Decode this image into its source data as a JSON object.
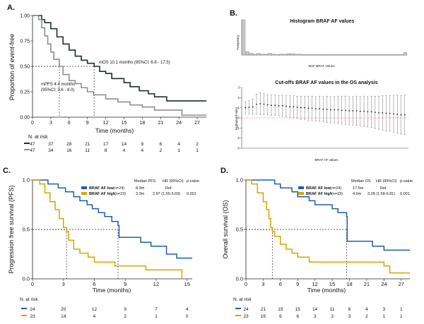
{
  "panels": {
    "A": {
      "letter": "A.",
      "ylabel": "Proportion of event-free",
      "xlabel": "Time (months)",
      "mos": "mOS 10.1 months (95%CI; 6.8 - 17.5)",
      "mpfs_1": "mPFS 4.4 months",
      "mpfs_2": "(95%CI; 3.6 - 8.0)",
      "risk_title": "N. at risk"
    },
    "B": {
      "letter": "B.",
      "hist_title": "Histogram BRAF AF values",
      "hist_ylabel": "Frequency",
      "hist_xlabel": "MAF BRAF values",
      "cut_title": "Cut-offs BRAF AF values in the OS analysis",
      "cut_ylabel": "log(hazard ratio)",
      "cut_xlabel": "BRAF AF values"
    },
    "C": {
      "letter": "C.",
      "ylabel": "Progression free survival (PFS)",
      "xlabel": "Time (months)",
      "h_median": "Median PFS",
      "h_hr": "HR (95%CI)",
      "h_p": "p-value",
      "low_label": "BRAF AF low",
      "low_n": "(n=24)",
      "low_median": "8.3m",
      "low_hr": "Ref.",
      "high_label": "BRAF AF high",
      "high_n": "(n=23)",
      "high_median": "3.3m",
      "high_hr": "2.97 (1.55-5.69)",
      "p": "0.001",
      "risk_title": "N. at risk"
    },
    "D": {
      "letter": "D.",
      "ylabel": "Overall survival (OS)",
      "xlabel": "Time (months)",
      "h_median": "Median OS",
      "h_hr": "HR (95%CI)",
      "h_p": "p-value",
      "low_label": "BRAF AF low",
      "low_n": "(n=24)",
      "low_median": "17.5m",
      "low_hr": "Ref.",
      "high_label": "BRAF AF high",
      "high_n": "(n=23)",
      "high_median": "4.6m",
      "high_hr": "3.28 (1.58-6.81)",
      "p": "0.001",
      "risk_title": "N. at risk"
    }
  },
  "chart_data": [
    {
      "id": "A",
      "type": "line",
      "title": "",
      "xlabel": "Time (months)",
      "ylabel": "Proportion of event-free",
      "xlim": [
        0,
        28.5
      ],
      "ylim": [
        0,
        1
      ],
      "xticks": [
        "0",
        "3",
        "6",
        "9",
        "12",
        "15",
        "18",
        "21",
        "24",
        "27"
      ],
      "yticks": [
        "0.00",
        "0.25",
        "0.50",
        "0.75",
        "1.00"
      ],
      "series": [
        {
          "name": "OS",
          "color": "#1f2f2a",
          "points": [
            [
              0,
              1
            ],
            [
              1,
              1
            ],
            [
              1.5,
              0.96
            ],
            [
              2,
              0.93
            ],
            [
              3,
              0.87
            ],
            [
              4,
              0.79
            ],
            [
              5,
              0.72
            ],
            [
              6,
              0.66
            ],
            [
              7,
              0.6
            ],
            [
              8,
              0.56
            ],
            [
              9,
              0.53
            ],
            [
              10.1,
              0.5
            ],
            [
              11,
              0.45
            ],
            [
              12,
              0.43
            ],
            [
              13,
              0.38
            ],
            [
              15,
              0.34
            ],
            [
              16,
              0.3
            ],
            [
              17.5,
              0.26
            ],
            [
              19,
              0.23
            ],
            [
              20,
              0.2
            ],
            [
              22,
              0.16
            ],
            [
              28.5,
              0.16
            ]
          ],
          "risk": [
            "47",
            "37",
            "28",
            "21",
            "17",
            "14",
            "9",
            "6",
            "4",
            "2"
          ]
        },
        {
          "name": "PFS",
          "color": "#8f8f8f",
          "points": [
            [
              0,
              1
            ],
            [
              1,
              0.96
            ],
            [
              1.5,
              0.88
            ],
            [
              2,
              0.8
            ],
            [
              2.5,
              0.72
            ],
            [
              3,
              0.64
            ],
            [
              3.5,
              0.57
            ],
            [
              4.4,
              0.5
            ],
            [
              5,
              0.42
            ],
            [
              6,
              0.36
            ],
            [
              7,
              0.33
            ],
            [
              8,
              0.29
            ],
            [
              9,
              0.25
            ],
            [
              10,
              0.22
            ],
            [
              12,
              0.18
            ],
            [
              14,
              0.15
            ],
            [
              16,
              0.12
            ],
            [
              18,
              0.1
            ],
            [
              20,
              0.07
            ],
            [
              24,
              0.07
            ],
            [
              24.5,
              0.02
            ],
            [
              28.5,
              0.02
            ]
          ],
          "risk": [
            "47",
            "34",
            "16",
            "11",
            "8",
            "4",
            "4",
            "2",
            "1",
            "1"
          ]
        }
      ],
      "medians": [
        {
          "x": 4.4,
          "y": 0.5
        },
        {
          "x": 10.1,
          "y": 0.5
        }
      ]
    },
    {
      "id": "B1",
      "type": "bar",
      "title": "Histogram BRAF AF values",
      "xlabel": "MAF BRAF values",
      "ylabel": "Frequency",
      "values": [
        20,
        2,
        1,
        0.5,
        1,
        0.5,
        0.5,
        1,
        0.5,
        0.3,
        0.5,
        0.5,
        0.8,
        0.8,
        0.5,
        0.5,
        0.3,
        0.3,
        0.3,
        0.3,
        0.3,
        0.3,
        0.3,
        0.3,
        0.3,
        0.3,
        0.3,
        0.3,
        0.3,
        0.3,
        0.3,
        0.3,
        0.3,
        0.3,
        0.3,
        0.3,
        0.3,
        0.3,
        0.3,
        0.3,
        0.3,
        0.3,
        0.3,
        1.5
      ],
      "ylim": [
        0,
        20
      ]
    },
    {
      "id": "B2",
      "type": "scatter",
      "title": "Cut-offs BRAF AF values in the OS analysis",
      "xlabel": "BRAF AF values",
      "ylabel": "log(hazard ratio)",
      "ylim": [
        -3,
        3
      ],
      "yticks": [
        "-3",
        "-2",
        "-1",
        "0",
        "1",
        "2",
        "3"
      ],
      "reference_line": 0,
      "estimates": [
        1.0,
        1.05,
        1.1,
        1.35,
        1.4,
        1.35,
        1.3,
        1.25,
        1.25,
        1.2,
        1.2,
        1.15,
        1.1,
        1.1,
        1.05,
        1.0,
        1.0,
        0.95,
        0.95,
        0.9,
        0.9,
        0.85,
        0.85,
        0.8,
        0.8,
        0.8,
        0.75,
        0.75,
        0.7,
        0.7,
        0.7,
        0.65,
        0.65,
        0.6,
        0.6,
        0.55,
        0.5,
        0.5,
        0.45,
        0.45,
        0.4,
        0.35,
        0.3,
        0.3
      ],
      "ci_half": [
        0.6,
        0.65,
        0.75,
        1.0,
        1.1,
        1.05,
        1.0,
        1.0,
        1.0,
        1.0,
        1.05,
        1.05,
        1.1,
        1.1,
        1.1,
        1.15,
        1.15,
        1.2,
        1.2,
        1.2,
        1.25,
        1.25,
        1.3,
        1.3,
        1.3,
        1.35,
        1.35,
        1.4,
        1.4,
        1.4,
        1.45,
        1.45,
        1.5,
        1.5,
        1.55,
        1.6,
        1.65,
        1.7,
        1.75,
        1.75,
        1.8,
        1.85,
        1.9,
        1.95
      ]
    },
    {
      "id": "C",
      "type": "line",
      "title": "",
      "xlabel": "Time (months)",
      "ylabel": "Progression free survival (PFS)",
      "xlim": [
        0,
        15.5
      ],
      "ylim": [
        0,
        1
      ],
      "xticks": [
        "0",
        "3",
        "6",
        "9",
        "12",
        "15"
      ],
      "yticks": [
        "0.0",
        "0.5",
        "1.0"
      ],
      "risk_times": [
        0,
        3,
        6,
        9,
        12,
        15
      ],
      "series": [
        {
          "name": "BRAF AF low",
          "color": "#1f5fa8",
          "points": [
            [
              0,
              1
            ],
            [
              1,
              1
            ],
            [
              1.5,
              0.96
            ],
            [
              2.5,
              0.92
            ],
            [
              3.2,
              0.88
            ],
            [
              4,
              0.83
            ],
            [
              4.6,
              0.79
            ],
            [
              5.3,
              0.75
            ],
            [
              5.8,
              0.71
            ],
            [
              6.4,
              0.67
            ],
            [
              7,
              0.63
            ],
            [
              7.7,
              0.58
            ],
            [
              8.3,
              0.54
            ],
            [
              8.4,
              0.42
            ],
            [
              10,
              0.42
            ],
            [
              10.5,
              0.37
            ],
            [
              11.5,
              0.33
            ],
            [
              13,
              0.25
            ],
            [
              14,
              0.21
            ],
            [
              15.5,
              0.21
            ]
          ],
          "risk": [
            "24",
            "20",
            "12",
            "9",
            "7",
            "4"
          ]
        },
        {
          "name": "BRAF AF high",
          "color": "#d9a300",
          "points": [
            [
              0,
              1
            ],
            [
              0.7,
              0.96
            ],
            [
              1.2,
              0.87
            ],
            [
              1.7,
              0.78
            ],
            [
              2.2,
              0.7
            ],
            [
              2.6,
              0.61
            ],
            [
              3.0,
              0.52
            ],
            [
              3.3,
              0.48
            ],
            [
              3.5,
              0.39
            ],
            [
              4,
              0.3
            ],
            [
              4.6,
              0.26
            ],
            [
              5.4,
              0.22
            ],
            [
              6,
              0.17
            ],
            [
              8,
              0.13
            ],
            [
              10,
              0.13
            ],
            [
              11,
              0.09
            ],
            [
              14.5,
              0.09
            ],
            [
              14.5,
              0.0
            ]
          ],
          "risk": [
            "23",
            "14",
            "4",
            "2",
            "1",
            "0"
          ]
        }
      ],
      "medians": [
        {
          "x": 3.3,
          "y": 0.5
        },
        {
          "x": 8.3,
          "y": 0.5
        }
      ]
    },
    {
      "id": "D",
      "type": "line",
      "title": "",
      "xlabel": "Time (months)",
      "ylabel": "Overall survival (OS)",
      "xlim": [
        0,
        28.5
      ],
      "ylim": [
        0,
        1
      ],
      "xticks": [
        "0",
        "3",
        "6",
        "9",
        "12",
        "15",
        "18",
        "21",
        "24",
        "27"
      ],
      "yticks": [
        "0.0",
        "0.5",
        "1.0"
      ],
      "risk_times": [
        0,
        3,
        6,
        9,
        12,
        15,
        18,
        21,
        24,
        27
      ],
      "series": [
        {
          "name": "BRAF AF low",
          "color": "#1f5fa8",
          "points": [
            [
              0,
              1
            ],
            [
              4,
              1
            ],
            [
              5,
              0.96
            ],
            [
              6,
              0.92
            ],
            [
              8,
              0.88
            ],
            [
              9,
              0.83
            ],
            [
              11,
              0.79
            ],
            [
              12,
              0.75
            ],
            [
              14,
              0.75
            ],
            [
              15,
              0.71
            ],
            [
              16,
              0.67
            ],
            [
              17.5,
              0.63
            ],
            [
              17.6,
              0.38
            ],
            [
              21,
              0.38
            ],
            [
              22,
              0.33
            ],
            [
              24,
              0.29
            ],
            [
              28.5,
              0.29
            ]
          ],
          "risk": [
            "24",
            "21",
            "19",
            "15",
            "14",
            "11",
            "6",
            "4",
            "3",
            "1"
          ]
        },
        {
          "name": "BRAF AF high",
          "color": "#d9a300",
          "points": [
            [
              0,
              1
            ],
            [
              1,
              0.96
            ],
            [
              2,
              0.87
            ],
            [
              3,
              0.78
            ],
            [
              3.6,
              0.7
            ],
            [
              4,
              0.61
            ],
            [
              4.3,
              0.52
            ],
            [
              4.6,
              0.48
            ],
            [
              5,
              0.43
            ],
            [
              6,
              0.35
            ],
            [
              7,
              0.3
            ],
            [
              8,
              0.26
            ],
            [
              9,
              0.22
            ],
            [
              11,
              0.17
            ],
            [
              21,
              0.17
            ],
            [
              24,
              0.13
            ],
            [
              25,
              0.06
            ],
            [
              28.5,
              0.06
            ]
          ],
          "risk": [
            "23",
            "16",
            "9",
            "6",
            "3",
            "3",
            "3",
            "2",
            "1",
            "1"
          ]
        }
      ],
      "medians": [
        {
          "x": 4.6,
          "y": 0.5
        },
        {
          "x": 17.5,
          "y": 0.5
        }
      ]
    }
  ]
}
